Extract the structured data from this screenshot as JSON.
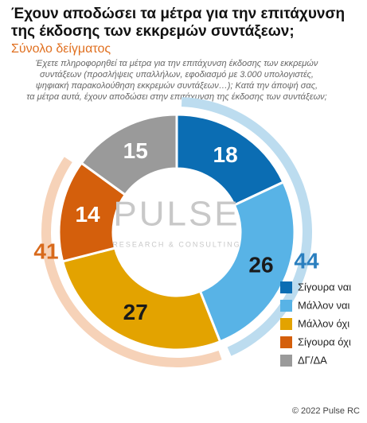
{
  "chart_data": {
    "type": "donut",
    "title": [
      "Έχουν αποδώσει τα μέτρα για την επιτάχυνση",
      "της έκδοσης των εκκρεμών συντάξεων;"
    ],
    "subtitle": "Σύνολο δείγματος",
    "note": [
      "Έχετε πληροφορηθεί τα μέτρα για την επιτάχυνση έκδοσης των εκκρεμών",
      "συντάξεων (προσλήψεις υπαλλήλων, εφοδιασμό με 3.000 υπολογιστές,",
      "ψηφιακή παρακολούθηση εκκρεμών συντάξεων…); Κατά την άποψή σας,",
      "τα μέτρα αυτά, έχουν αποδώσει στην επιτάχυνση της έκδοσης των συντάξεων;"
    ],
    "categories": [
      "Σίγουρα ναι",
      "Μάλλον ναι",
      "Μάλλον όχι",
      "Σίγουρα όχι",
      "ΔΓ/ΔΑ"
    ],
    "values": [
      18,
      26,
      27,
      14,
      15
    ],
    "colors": [
      "#0b6db3",
      "#58b3e6",
      "#e3a300",
      "#d45f0c",
      "#9a9a9a"
    ],
    "label_colors": [
      "#ffffff",
      "#1a1a1a",
      "#1a1a1a",
      "#ffffff",
      "#ffffff"
    ],
    "groups": [
      {
        "value": 44,
        "color": "#bcdcef",
        "label_color": "#2a7fbf"
      },
      {
        "value": 41,
        "color": "#f6d2b8",
        "label_color": "#d86a1c"
      }
    ],
    "watermark": [
      "PULSE",
      "RESEARCH & CONSULTING"
    ],
    "footer": "© 2022 Pulse RC"
  }
}
